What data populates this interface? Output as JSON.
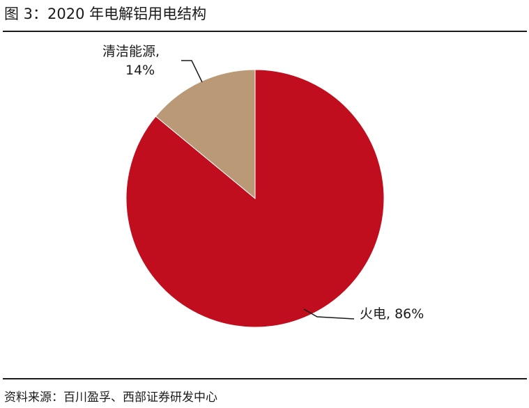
{
  "figure": {
    "title": "图 3：2020 年电解铝用电结构",
    "source": "资料来源：百川盈孚、西部证券研发中心"
  },
  "chart_data": {
    "type": "pie",
    "title": "",
    "start_angle_deg": 0,
    "direction": "clockwise",
    "slices": [
      {
        "label": "火电",
        "value": 86,
        "display": "火电, 86%",
        "color": "#C00E1E"
      },
      {
        "label": "清洁能源",
        "value": 14,
        "display_line1": "清洁能源,",
        "display_line2": "14%",
        "color": "#BA9A76"
      }
    ],
    "legend": "none"
  }
}
